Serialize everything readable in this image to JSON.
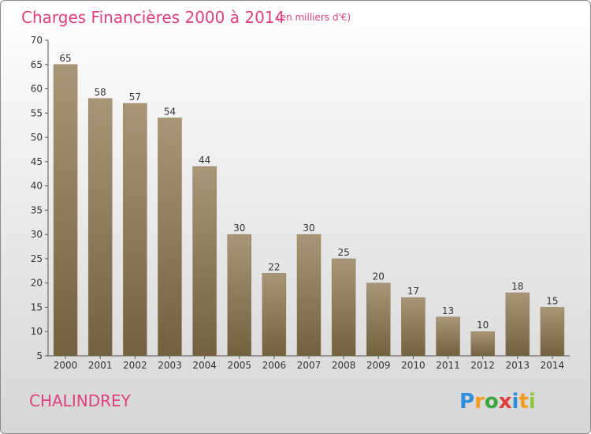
{
  "chart_data": {
    "type": "bar",
    "title": "Charges Financières 2000 à 2014",
    "subtitle": "(en milliers d'€)",
    "categories": [
      "2000",
      "2001",
      "2002",
      "2003",
      "2004",
      "2005",
      "2006",
      "2007",
      "2008",
      "2009",
      "2010",
      "2011",
      "2012",
      "2013",
      "2014"
    ],
    "values": [
      65,
      58,
      57,
      54,
      44,
      30,
      22,
      30,
      25,
      20,
      17,
      13,
      10,
      18,
      15
    ],
    "ylim": [
      5,
      70
    ],
    "yticks": [
      5,
      10,
      15,
      20,
      25,
      30,
      35,
      40,
      45,
      50,
      55,
      60,
      65,
      70
    ],
    "grid": false,
    "legend": "none",
    "bar_color_top": "#a89677",
    "bar_color_bottom": "#73603f"
  },
  "place_name": "CHALINDREY",
  "logo": {
    "letters": [
      "P",
      "r",
      "o",
      "x",
      "i",
      "t",
      "i"
    ],
    "colors": [
      "#2f8fd8",
      "#f39c1e",
      "#39a83c",
      "#e03b3b",
      "#2f8fd8",
      "#f39c1e",
      "#8cc63f"
    ]
  }
}
